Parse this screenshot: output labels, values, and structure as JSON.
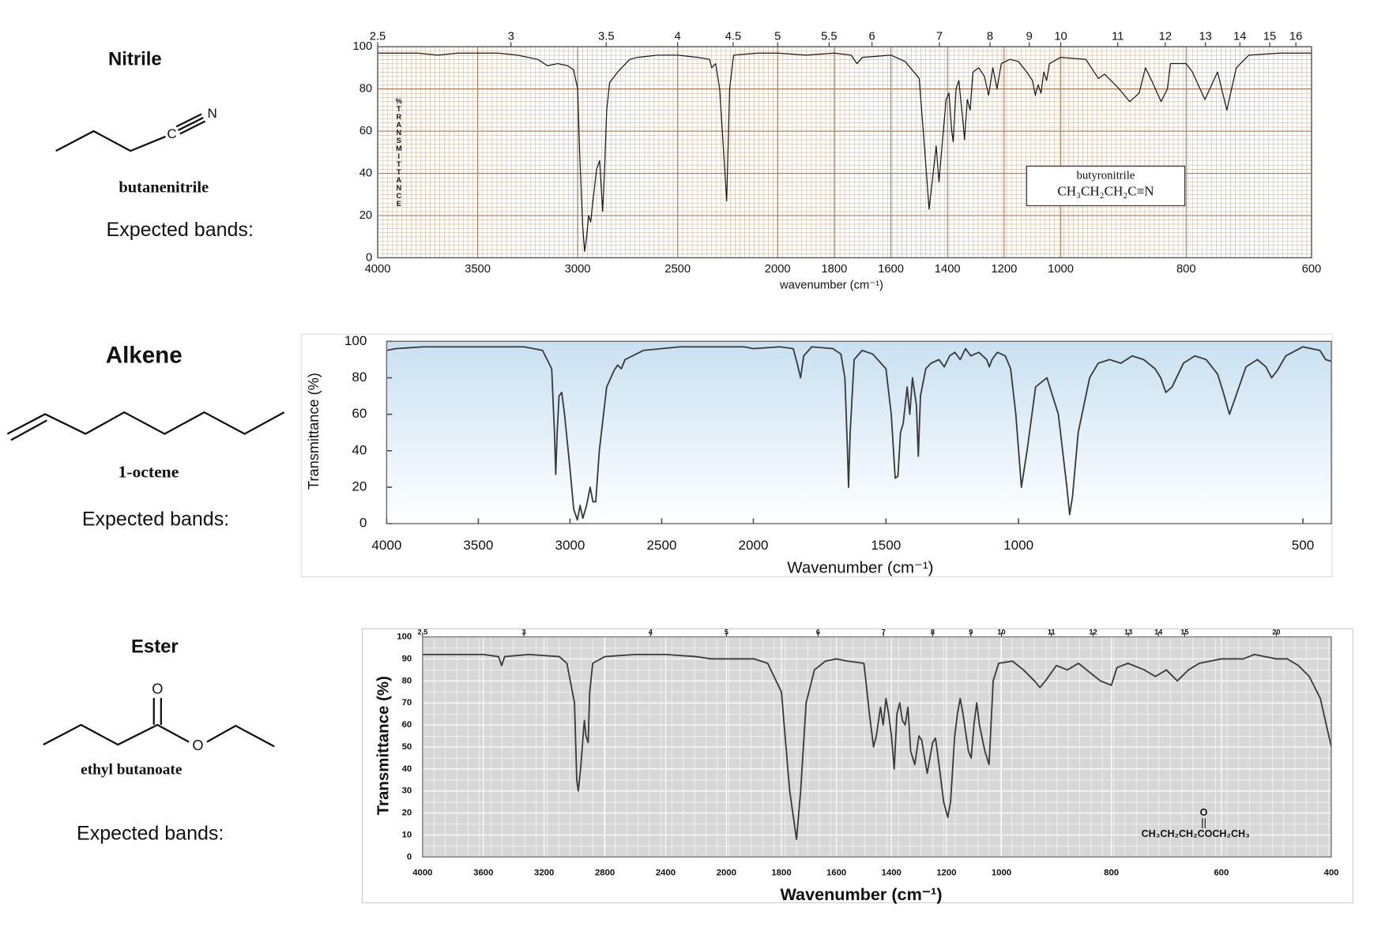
{
  "sections": [
    {
      "heading": "Nitrile",
      "compound": "butanenitrile",
      "prompt": "Expected bands:",
      "atoms": [
        "C",
        "N"
      ]
    },
    {
      "heading": "Alkene",
      "compound": "1-octene",
      "prompt": "Expected bands:"
    },
    {
      "heading": "Ester",
      "compound": "ethyl butanoate",
      "prompt": "Expected bands:",
      "atoms": [
        "O",
        "O"
      ]
    }
  ],
  "chart_data": [
    {
      "type": "line",
      "x": [
        4000,
        3900,
        3800,
        3700,
        3600,
        3400,
        3300,
        3200,
        3150,
        3100,
        3050,
        3020,
        3000,
        2990,
        2975,
        2965,
        2955,
        2945,
        2935,
        2920,
        2905,
        2890,
        2880,
        2875,
        2865,
        2855,
        2840,
        2800,
        2760,
        2740,
        2700,
        2600,
        2500,
        2400,
        2340,
        2330,
        2310,
        2290,
        2255,
        2240,
        2220,
        2100,
        2000,
        1900,
        1800,
        1740,
        1720,
        1700,
        1600,
        1550,
        1500,
        1480,
        1465,
        1455,
        1440,
        1430,
        1418,
        1405,
        1395,
        1385,
        1380,
        1370,
        1360,
        1345,
        1340,
        1330,
        1320,
        1310,
        1290,
        1270,
        1255,
        1240,
        1225,
        1210,
        1180,
        1150,
        1120,
        1100,
        1090,
        1080,
        1070,
        1060,
        1050,
        1040,
        1000,
        960,
        940,
        930,
        910,
        890,
        875,
        865,
        855,
        840,
        830,
        825,
        800,
        790,
        770,
        750,
        735,
        720,
        700,
        650,
        600
      ],
      "series": [
        {
          "color": "#1a1a1a",
          "values": [
            97,
            97,
            97,
            96,
            97,
            97,
            96,
            94,
            91,
            92,
            91,
            89,
            80,
            50,
            15,
            3,
            10,
            20,
            17,
            30,
            42,
            46,
            30,
            22,
            42,
            70,
            83,
            88,
            92,
            94,
            95,
            96,
            96,
            95,
            94,
            90,
            92,
            80,
            27,
            80,
            96,
            97,
            97,
            96,
            97,
            96,
            92,
            95,
            96,
            93,
            85,
            50,
            23,
            35,
            53,
            36,
            55,
            75,
            78,
            60,
            55,
            80,
            84,
            64,
            56,
            75,
            70,
            88,
            90,
            86,
            77,
            90,
            80,
            92,
            94,
            93,
            88,
            84,
            77,
            82,
            78,
            88,
            84,
            92,
            95,
            94,
            85,
            87,
            81,
            74,
            78,
            90,
            84,
            74,
            80,
            92,
            92,
            88,
            75,
            88,
            70,
            90,
            96,
            97,
            97
          ]
        }
      ],
      "xlim": [
        4000,
        600
      ],
      "xbreaks": [
        2000,
        1000
      ],
      "xticks": [
        4000,
        3500,
        3000,
        2500,
        2000,
        1800,
        1600,
        1400,
        1200,
        1000,
        800,
        600
      ],
      "x2ticks": [
        {
          "value": 4000,
          "label": "2.5"
        },
        {
          "value": 3333.3,
          "label": "3"
        },
        {
          "value": 2857.1,
          "label": "3.5"
        },
        {
          "value": 2500,
          "label": "4"
        },
        {
          "value": 2222.2,
          "label": "4.5"
        },
        {
          "value": 2000,
          "label": "5"
        },
        {
          "value": 1818.2,
          "label": "5.5"
        },
        {
          "value": 1666.7,
          "label": "6"
        },
        {
          "value": 1428.6,
          "label": "7"
        },
        {
          "value": 1250,
          "label": "8"
        },
        {
          "value": 1111.1,
          "label": "9"
        },
        {
          "value": 1000,
          "label": "10"
        },
        {
          "value": 909.1,
          "label": "11"
        },
        {
          "value": 833.3,
          "label": "12"
        },
        {
          "value": 769.2,
          "label": "13"
        },
        {
          "value": 714.3,
          "label": "14"
        },
        {
          "value": 666.7,
          "label": "15"
        },
        {
          "value": 625,
          "label": "16"
        }
      ],
      "ylim": [
        0,
        100
      ],
      "yticks": [
        0,
        20,
        40,
        60,
        80,
        100
      ],
      "xlabel": "wavenumber (cm⁻¹)",
      "ylabel": "%TRANSMITTANCE",
      "grid": true,
      "annotation": [
        "butyronitrile",
        "CH₃CH₂CH₂C≡N"
      ]
    },
    {
      "type": "line",
      "x": [
        4000,
        3950,
        3800,
        3600,
        3400,
        3250,
        3150,
        3100,
        3085,
        3078,
        3070,
        3060,
        3045,
        3030,
        3000,
        2980,
        2960,
        2945,
        2930,
        2910,
        2890,
        2875,
        2860,
        2840,
        2800,
        2760,
        2740,
        2720,
        2700,
        2600,
        2400,
        2200,
        2050,
        2000,
        1900,
        1850,
        1835,
        1822,
        1810,
        1780,
        1700,
        1670,
        1655,
        1645,
        1641,
        1635,
        1620,
        1590,
        1550,
        1500,
        1480,
        1465,
        1455,
        1445,
        1435,
        1420,
        1410,
        1400,
        1385,
        1378,
        1370,
        1350,
        1330,
        1300,
        1280,
        1260,
        1240,
        1220,
        1200,
        1180,
        1150,
        1120,
        1110,
        1100,
        1080,
        1050,
        1030,
        1010,
        995,
        985,
        970,
        950,
        930,
        915,
        910,
        905,
        895,
        875,
        860,
        840,
        820,
        800,
        780,
        760,
        750,
        741,
        730,
        710,
        690,
        670,
        650,
        640,
        629,
        620,
        600,
        580,
        565,
        555,
        545,
        530,
        500,
        470,
        460,
        450
      ],
      "series": [
        {
          "color": "#3a3a3a",
          "values": [
            95,
            96,
            97,
            97,
            97,
            97,
            95,
            85,
            50,
            27,
            50,
            70,
            72,
            60,
            30,
            8,
            2,
            10,
            3,
            10,
            20,
            12,
            12,
            40,
            75,
            84,
            87,
            85,
            90,
            95,
            97,
            97,
            97,
            96,
            97,
            96,
            88,
            80,
            92,
            97,
            96,
            93,
            80,
            40,
            20,
            50,
            90,
            95,
            93,
            85,
            60,
            25,
            26,
            50,
            55,
            75,
            60,
            80,
            65,
            37,
            70,
            85,
            88,
            90,
            86,
            92,
            94,
            90,
            96,
            92,
            94,
            90,
            86,
            90,
            94,
            92,
            85,
            60,
            20,
            40,
            75,
            80,
            60,
            20,
            5,
            15,
            50,
            80,
            88,
            90,
            88,
            92,
            90,
            85,
            80,
            72,
            75,
            88,
            92,
            90,
            82,
            72,
            60,
            68,
            86,
            90,
            86,
            80,
            84,
            92,
            97,
            95,
            90,
            89
          ]
        }
      ],
      "xlim": [
        4000,
        450
      ],
      "xbreaks": [
        2000,
        1000
      ],
      "xticks": [
        4000,
        3500,
        3000,
        2500,
        2000,
        1500,
        1000,
        500
      ],
      "ylim": [
        0,
        100
      ],
      "yticks": [
        0,
        20,
        40,
        60,
        80,
        100
      ],
      "xlabel": "Wavenumber (cm⁻¹)",
      "ylabel": "Transmittance (%)",
      "grid": false
    },
    {
      "type": "line",
      "x": [
        4000,
        3800,
        3600,
        3500,
        3480,
        3460,
        3300,
        3100,
        3050,
        3000,
        2985,
        2975,
        2960,
        2940,
        2935,
        2925,
        2910,
        2900,
        2880,
        2800,
        2600,
        2400,
        2200,
        2100,
        2000,
        1900,
        1850,
        1800,
        1770,
        1745,
        1730,
        1710,
        1680,
        1640,
        1600,
        1560,
        1500,
        1480,
        1465,
        1455,
        1440,
        1430,
        1420,
        1410,
        1400,
        1390,
        1380,
        1370,
        1360,
        1350,
        1340,
        1330,
        1315,
        1300,
        1290,
        1270,
        1260,
        1250,
        1240,
        1230,
        1210,
        1195,
        1185,
        1170,
        1160,
        1150,
        1140,
        1120,
        1110,
        1100,
        1090,
        1080,
        1060,
        1045,
        1040,
        1030,
        1010,
        980,
        960,
        940,
        930,
        920,
        900,
        880,
        860,
        840,
        820,
        800,
        790,
        770,
        740,
        720,
        700,
        680,
        660,
        640,
        600,
        560,
        540,
        500,
        480,
        460,
        440,
        420,
        400
      ],
      "series": [
        {
          "color": "#3a3a3a",
          "values": [
            92,
            92,
            92,
            91,
            87,
            91,
            92,
            91,
            88,
            70,
            35,
            30,
            40,
            58,
            62,
            55,
            52,
            75,
            88,
            91,
            92,
            92,
            91,
            90,
            90,
            90,
            88,
            75,
            30,
            8,
            30,
            70,
            85,
            89,
            90,
            89,
            88,
            65,
            50,
            55,
            68,
            60,
            72,
            65,
            55,
            40,
            65,
            70,
            62,
            60,
            68,
            48,
            42,
            55,
            53,
            38,
            45,
            52,
            54,
            45,
            25,
            18,
            25,
            55,
            65,
            72,
            65,
            48,
            45,
            60,
            70,
            60,
            48,
            42,
            55,
            80,
            88,
            89,
            85,
            80,
            77,
            80,
            87,
            85,
            88,
            84,
            80,
            78,
            86,
            88,
            85,
            82,
            85,
            80,
            85,
            88,
            90,
            90,
            92,
            90,
            90,
            87,
            82,
            72,
            50
          ]
        }
      ],
      "xlim": [
        4000,
        400
      ],
      "xbreaks": [
        2000,
        1000
      ],
      "xticks": [
        4000,
        3600,
        3200,
        2800,
        2400,
        2000,
        1800,
        1600,
        1400,
        1200,
        1000,
        800,
        600,
        400
      ],
      "x2ticks": [
        {
          "value": 4000,
          "label": "2.5"
        },
        {
          "value": 3333.3,
          "label": "3"
        },
        {
          "value": 2500,
          "label": "4"
        },
        {
          "value": 2000,
          "label": "5"
        },
        {
          "value": 1666.7,
          "label": "6"
        },
        {
          "value": 1428.6,
          "label": "7"
        },
        {
          "value": 1250,
          "label": "8"
        },
        {
          "value": 1111.1,
          "label": "9"
        },
        {
          "value": 1000,
          "label": "10"
        },
        {
          "value": 909.1,
          "label": "11"
        },
        {
          "value": 833.3,
          "label": "12"
        },
        {
          "value": 769.2,
          "label": "13"
        },
        {
          "value": 714.3,
          "label": "14"
        },
        {
          "value": 666.7,
          "label": "15"
        },
        {
          "value": 500,
          "label": "20"
        }
      ],
      "ylim": [
        0,
        100
      ],
      "yticks": [
        0,
        10,
        20,
        30,
        40,
        50,
        60,
        70,
        80,
        90,
        100
      ],
      "xlabel": "Wavenumber (cm⁻¹)",
      "ylabel": "Transmittance (%)",
      "grid": true,
      "annotation": [
        "O",
        "CH₃CH₂CH₂COCH₂CH₃"
      ]
    }
  ]
}
